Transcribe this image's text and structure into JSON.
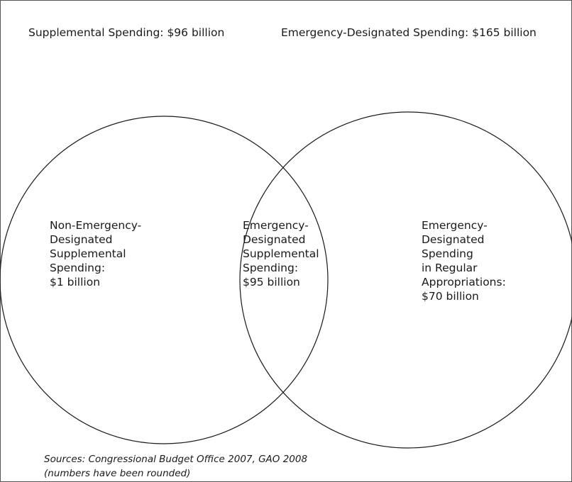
{
  "sets": {
    "left_title": "Supplemental Spending: $96 billion",
    "right_title": "Emergency-Designated Spending: $165 billion"
  },
  "regions": {
    "left": [
      "Non-Emergency-",
      "Designated",
      "Supplemental",
      "Spending:",
      "$1 billion"
    ],
    "center": [
      "Emergency-",
      "Designated",
      "Supplemental",
      "Spending:",
      "$95 billion"
    ],
    "right": [
      "Emergency-",
      "Designated",
      "Spending",
      "in Regular",
      "Appropriations:",
      "$70 billion"
    ]
  },
  "sources": {
    "line1": "Sources: Congressional Budget Office 2007, GAO 2008",
    "line2": "(numbers have been rounded)"
  },
  "colors": {
    "stroke": "#1a1a1a",
    "border": "#555555",
    "background": "#ffffff"
  }
}
